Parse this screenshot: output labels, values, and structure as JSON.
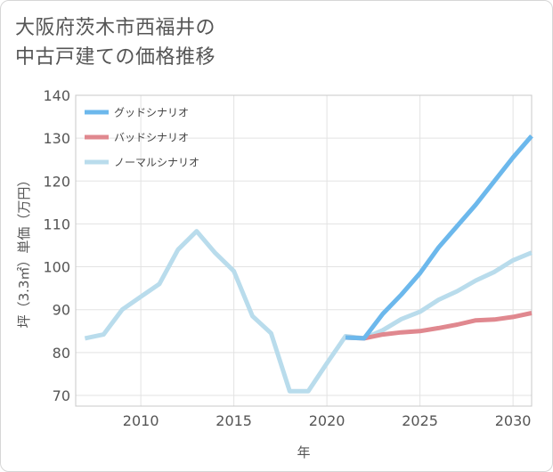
{
  "title_lines": [
    "大阪府茨木市西福井の",
    "中古戸建ての価格推移"
  ],
  "chart_data": {
    "type": "line",
    "title": "大阪府茨木市西福井の中古戸建ての価格推移",
    "xlabel": "年",
    "ylabel": "坪（3.3㎡）単価（万円）",
    "xlim": [
      2006.5,
      2031
    ],
    "ylim": [
      67.5,
      140
    ],
    "xticks": [
      2010,
      2015,
      2020,
      2025,
      2030
    ],
    "yticks": [
      70,
      80,
      90,
      100,
      110,
      120,
      130,
      140
    ],
    "grid": true,
    "legend_position": "top-left",
    "series": [
      {
        "name": "グッドシナリオ",
        "color": "#6cb8ec",
        "x": [
          2021,
          2022,
          2023,
          2024,
          2025,
          2026,
          2027,
          2028,
          2029,
          2030,
          2031
        ],
        "y": [
          83.5,
          83.3,
          89,
          93.5,
          98.5,
          104.5,
          109.5,
          114.5,
          120,
          125.5,
          130.5
        ]
      },
      {
        "name": "バッドシナリオ",
        "color": "#e0888f",
        "x": [
          2021,
          2022,
          2023,
          2024,
          2025,
          2026,
          2027,
          2028,
          2029,
          2030,
          2031
        ],
        "y": [
          83.5,
          83.3,
          84.2,
          84.7,
          85,
          85.7,
          86.5,
          87.5,
          87.7,
          88.3,
          89.2
        ]
      },
      {
        "name": "ノーマルシナリオ",
        "color": "#b9dcec",
        "x": [
          2007,
          2008,
          2009,
          2010,
          2011,
          2012,
          2013,
          2014,
          2015,
          2016,
          2017,
          2018,
          2019,
          2020,
          2021,
          2022,
          2023,
          2024,
          2025,
          2026,
          2027,
          2028,
          2029,
          2030,
          2031
        ],
        "y": [
          83.3,
          84.2,
          90,
          93,
          96,
          104,
          108.3,
          103.2,
          99,
          88.5,
          84.5,
          71,
          71,
          77.5,
          83.8,
          83.3,
          85.2,
          87.8,
          89.5,
          92.3,
          94.3,
          96.8,
          98.8,
          101.5,
          103.3
        ]
      }
    ]
  }
}
